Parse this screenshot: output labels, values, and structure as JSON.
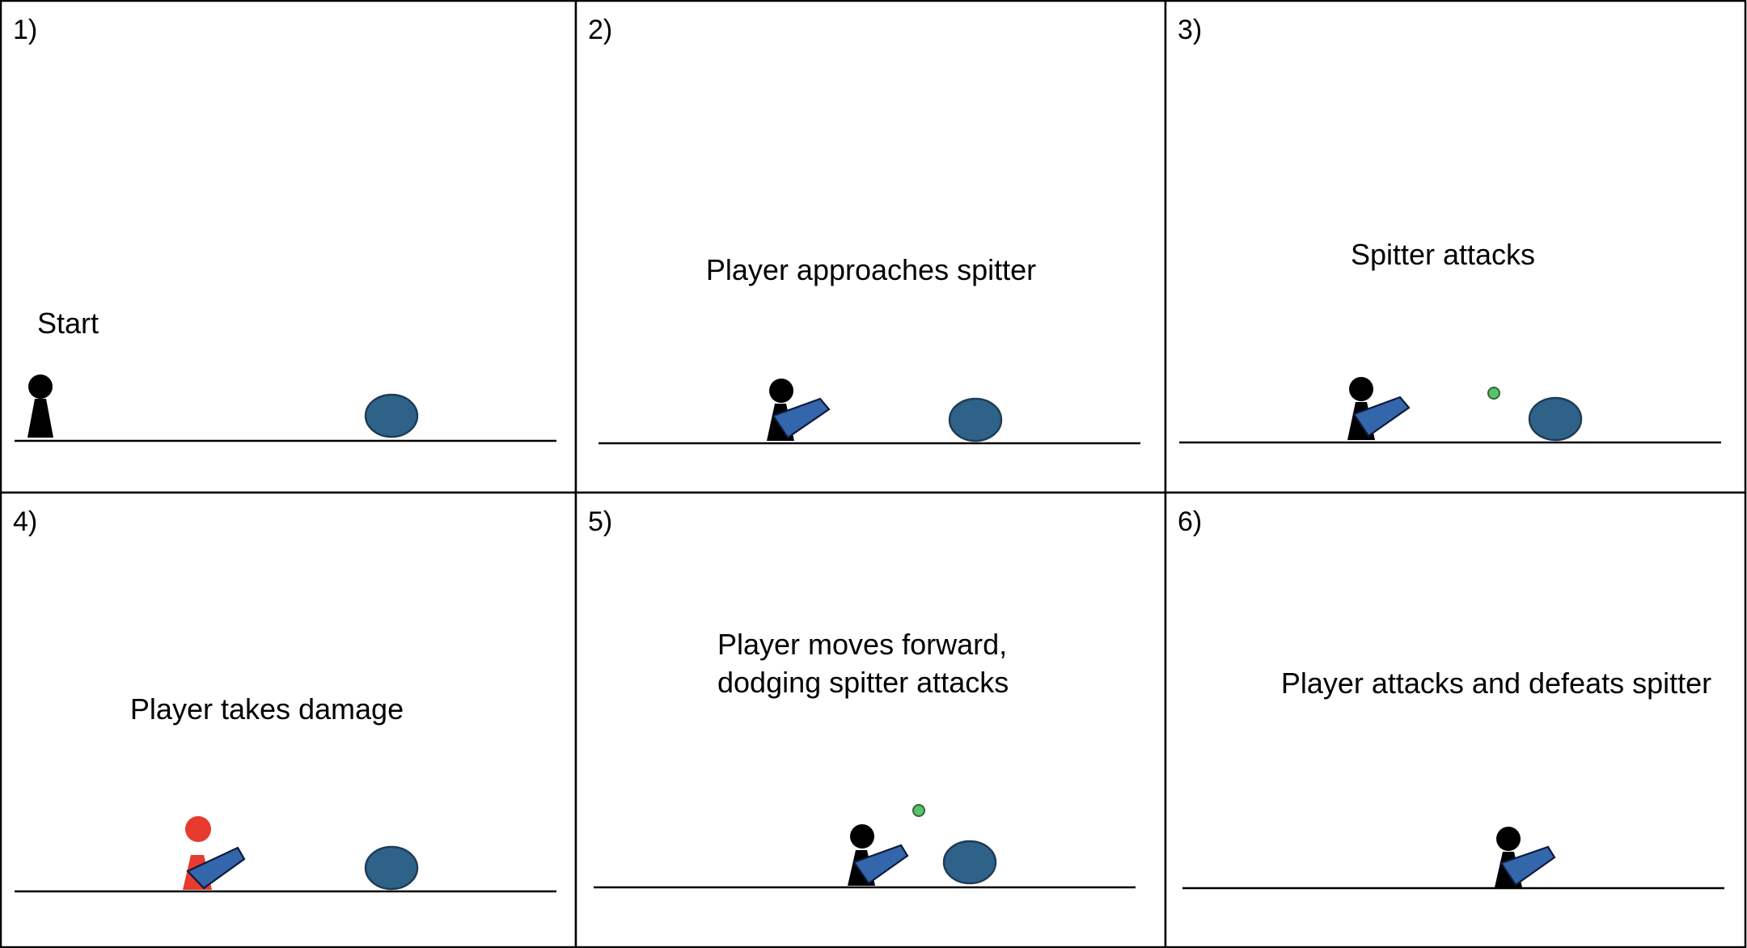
{
  "colors": {
    "player": "#000000",
    "player_damaged": "#e63b2e",
    "spitter": "#2e6289",
    "weapon": "#3366aa",
    "projectile": "#5cc16d",
    "border": "#000000",
    "background": "#ffffff"
  },
  "panels": [
    {
      "number": "1)",
      "caption_lines": [
        "Start"
      ]
    },
    {
      "number": "2)",
      "caption_lines": [
        "Player approaches spitter"
      ]
    },
    {
      "number": "3)",
      "caption_lines": [
        "Spitter attacks"
      ]
    },
    {
      "number": "4)",
      "caption_lines": [
        "Player takes damage"
      ]
    },
    {
      "number": "5)",
      "caption_lines": [
        "Player moves forward,",
        "dodging spitter attacks"
      ]
    },
    {
      "number": "6)",
      "caption_lines": [
        "Player attacks and defeats spitter"
      ]
    }
  ]
}
